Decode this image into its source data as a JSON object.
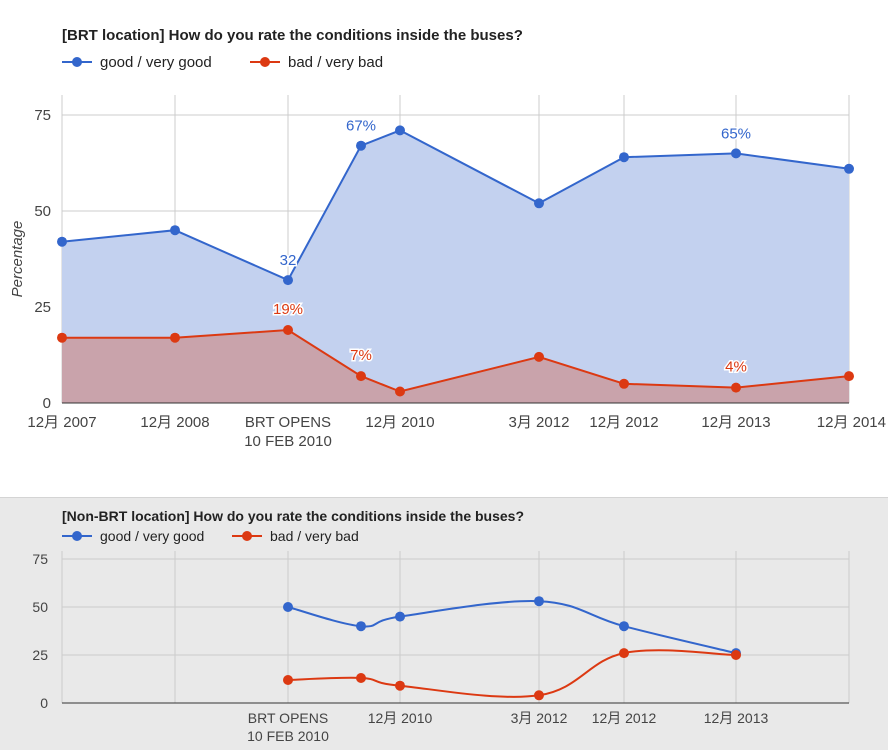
{
  "colors": {
    "good": "#3366cc",
    "bad": "#dc3912",
    "good_fill": "#c3d1ef",
    "bad_fill": "#c9a3ab",
    "grid": "#cccccc",
    "axis": "#333333",
    "text": "#222222",
    "tick": "#444444"
  },
  "chart_data": [
    {
      "type": "area",
      "title": "[BRT location] How do you rate the conditions inside the buses?",
      "xlabel": "",
      "ylabel": "Percentage",
      "ylim": [
        0,
        75
      ],
      "yticks": [
        0,
        25,
        50,
        75
      ],
      "grid": true,
      "legend_position": "top",
      "x_ticks": [
        {
          "label": "12月 2007"
        },
        {
          "label": "12月 2008"
        },
        {
          "label": "BRT OPENS\n10 FEB 2010"
        },
        {
          "label": "12月 2010"
        },
        {
          "label": "3月 2012"
        },
        {
          "label": "12月 2012"
        },
        {
          "label": "12月 2013"
        },
        {
          "label": "12月 2014"
        }
      ],
      "x": [
        "2007-12",
        "2008-12",
        "2010-02-10",
        "2010-07",
        "2010-12",
        "2012-03",
        "2012-12",
        "2013-12",
        "2014-12"
      ],
      "series": [
        {
          "name": "good / very good",
          "key": "good",
          "values": [
            42,
            45,
            32,
            67,
            71,
            52,
            64,
            65,
            61
          ],
          "annotations": [
            {
              "index": 2,
              "text": "32"
            },
            {
              "index": 3,
              "text": "67%"
            },
            {
              "index": 7,
              "text": "65%"
            }
          ]
        },
        {
          "name": "bad / very bad",
          "key": "bad",
          "values": [
            17,
            17,
            19,
            7,
            3,
            12,
            5,
            4,
            7
          ],
          "annotations": [
            {
              "index": 2,
              "text": "19%"
            },
            {
              "index": 3,
              "text": "7%"
            },
            {
              "index": 7,
              "text": "4%"
            }
          ]
        }
      ]
    },
    {
      "type": "line",
      "title": "[Non-BRT location] How do you rate the conditions inside the buses?",
      "xlabel": "",
      "ylabel": "",
      "ylim": [
        0,
        75
      ],
      "yticks": [
        0,
        25,
        50,
        75
      ],
      "grid": true,
      "legend_position": "top",
      "x_ticks": [
        {
          "label": ""
        },
        {
          "label": ""
        },
        {
          "label": "BRT OPENS\n10 FEB 2010"
        },
        {
          "label": "12月 2010"
        },
        {
          "label": "3月 2012"
        },
        {
          "label": "12月 2012"
        },
        {
          "label": "12月 2013"
        },
        {
          "label": ""
        }
      ],
      "x": [
        "2010-02-10",
        "2010-07",
        "2010-12",
        "2012-03",
        "2012-12",
        "2013-12"
      ],
      "series": [
        {
          "name": "good / very good",
          "key": "good",
          "values": [
            50,
            40,
            45,
            53,
            40,
            26
          ]
        },
        {
          "name": "bad / very bad",
          "key": "bad",
          "values": [
            12,
            13,
            9,
            4,
            26,
            25
          ]
        }
      ]
    }
  ]
}
